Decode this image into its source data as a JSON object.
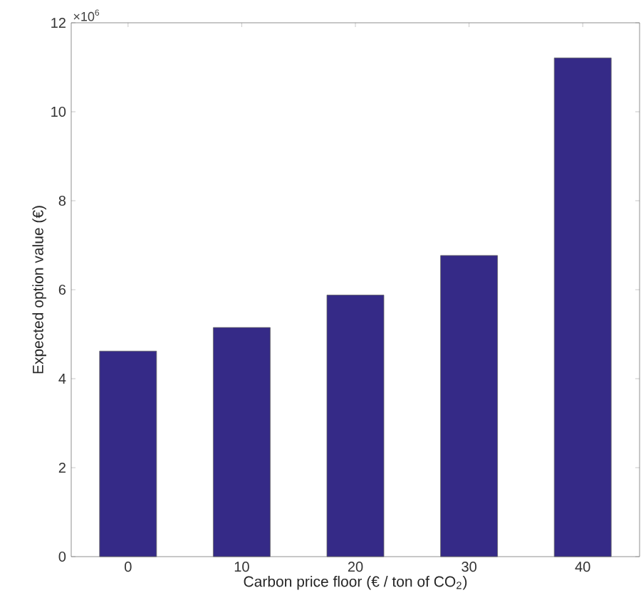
{
  "chart_data": {
    "type": "bar",
    "xlabel": "Carbon price floor (€ / ton of CO$_{2}$)",
    "ylabel": "Expected option value (€)",
    "categories": [
      "0",
      "10",
      "20",
      "30",
      "40"
    ],
    "values": [
      4.62,
      5.15,
      5.88,
      6.77,
      11.21
    ],
    "color": "#352a87",
    "ylim": [
      0,
      12
    ],
    "yticks": [
      0,
      2,
      4,
      6,
      8,
      10,
      12
    ],
    "annotations": [
      "×10$^{6}$"
    ]
  }
}
